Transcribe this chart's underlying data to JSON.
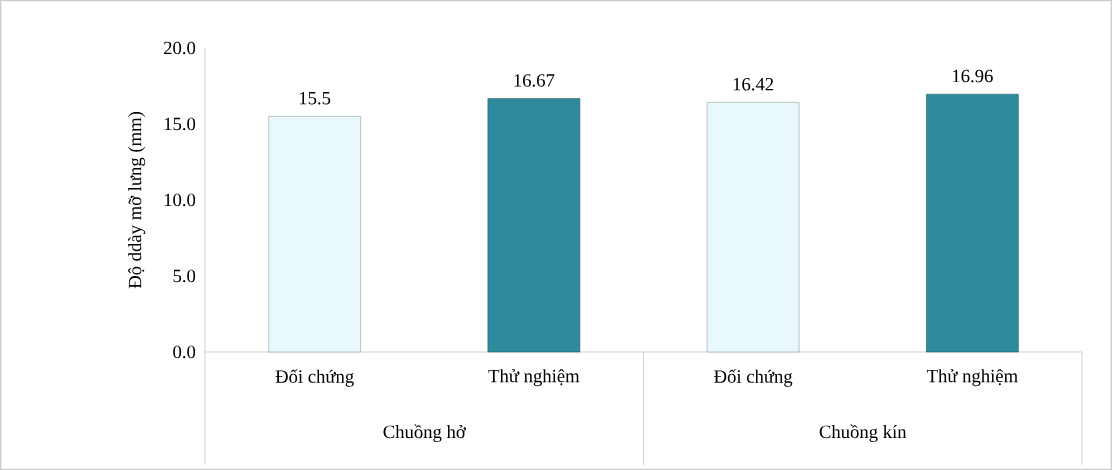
{
  "chart_data": {
    "type": "bar",
    "ylabel": "Độ ddày mỡ lưng (mm)",
    "categories": [
      "Đối chứng",
      "Thử nghiệm",
      "Đối chứng",
      "Thử nghiệm"
    ],
    "values": [
      15.5,
      16.67,
      16.42,
      16.96
    ],
    "colors": [
      "#e8f8fd",
      "#2f8a9c",
      "#e8f8fd",
      "#2f8a9c"
    ],
    "ylim": [
      0,
      20
    ],
    "yticks": [
      {
        "value": 0,
        "label": "0.0"
      },
      {
        "value": 5,
        "label": "5.0"
      },
      {
        "value": 10,
        "label": "10.0"
      },
      {
        "value": 15,
        "label": "15.0"
      },
      {
        "value": 20,
        "label": "20.0"
      }
    ],
    "data_labels": true,
    "annotations": [
      "Chuồng hở",
      "Chuồng kín"
    ]
  }
}
